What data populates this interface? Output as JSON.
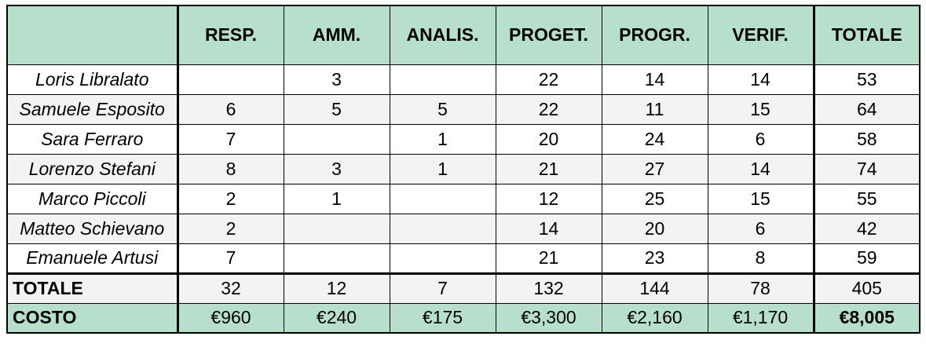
{
  "header": {
    "corner": "",
    "columns": [
      "RESP.",
      "AMM.",
      "ANALIS.",
      "PROGET.",
      "PROGR.",
      "VERIF.",
      "TOTALE"
    ]
  },
  "rows": [
    {
      "name": "Loris Libralato",
      "values": [
        "",
        "3",
        "",
        "22",
        "14",
        "14",
        "53"
      ]
    },
    {
      "name": "Samuele Esposito",
      "values": [
        "6",
        "5",
        "5",
        "22",
        "11",
        "15",
        "64"
      ]
    },
    {
      "name": "Sara Ferraro",
      "values": [
        "7",
        "",
        "1",
        "20",
        "24",
        "6",
        "58"
      ]
    },
    {
      "name": "Lorenzo Stefani",
      "values": [
        "8",
        "3",
        "1",
        "21",
        "27",
        "14",
        "74"
      ]
    },
    {
      "name": "Marco Piccoli",
      "values": [
        "2",
        "1",
        "",
        "12",
        "25",
        "15",
        "55"
      ]
    },
    {
      "name": "Matteo Schievano",
      "values": [
        "2",
        "",
        "",
        "14",
        "20",
        "6",
        "42"
      ]
    },
    {
      "name": "Emanuele Artusi",
      "values": [
        "7",
        "",
        "",
        "21",
        "23",
        "8",
        "59"
      ]
    }
  ],
  "total": {
    "label": "TOTALE",
    "values": [
      "32",
      "12",
      "7",
      "132",
      "144",
      "78",
      "405"
    ]
  },
  "cost": {
    "label": "COSTO",
    "values": [
      "€960",
      "€240",
      "€175",
      "€3,300",
      "€2,160",
      "€1,170",
      "€8,005"
    ]
  },
  "colors": {
    "header_bg": "#b6e0cc",
    "stripe_bg": "#f3f3f3"
  }
}
